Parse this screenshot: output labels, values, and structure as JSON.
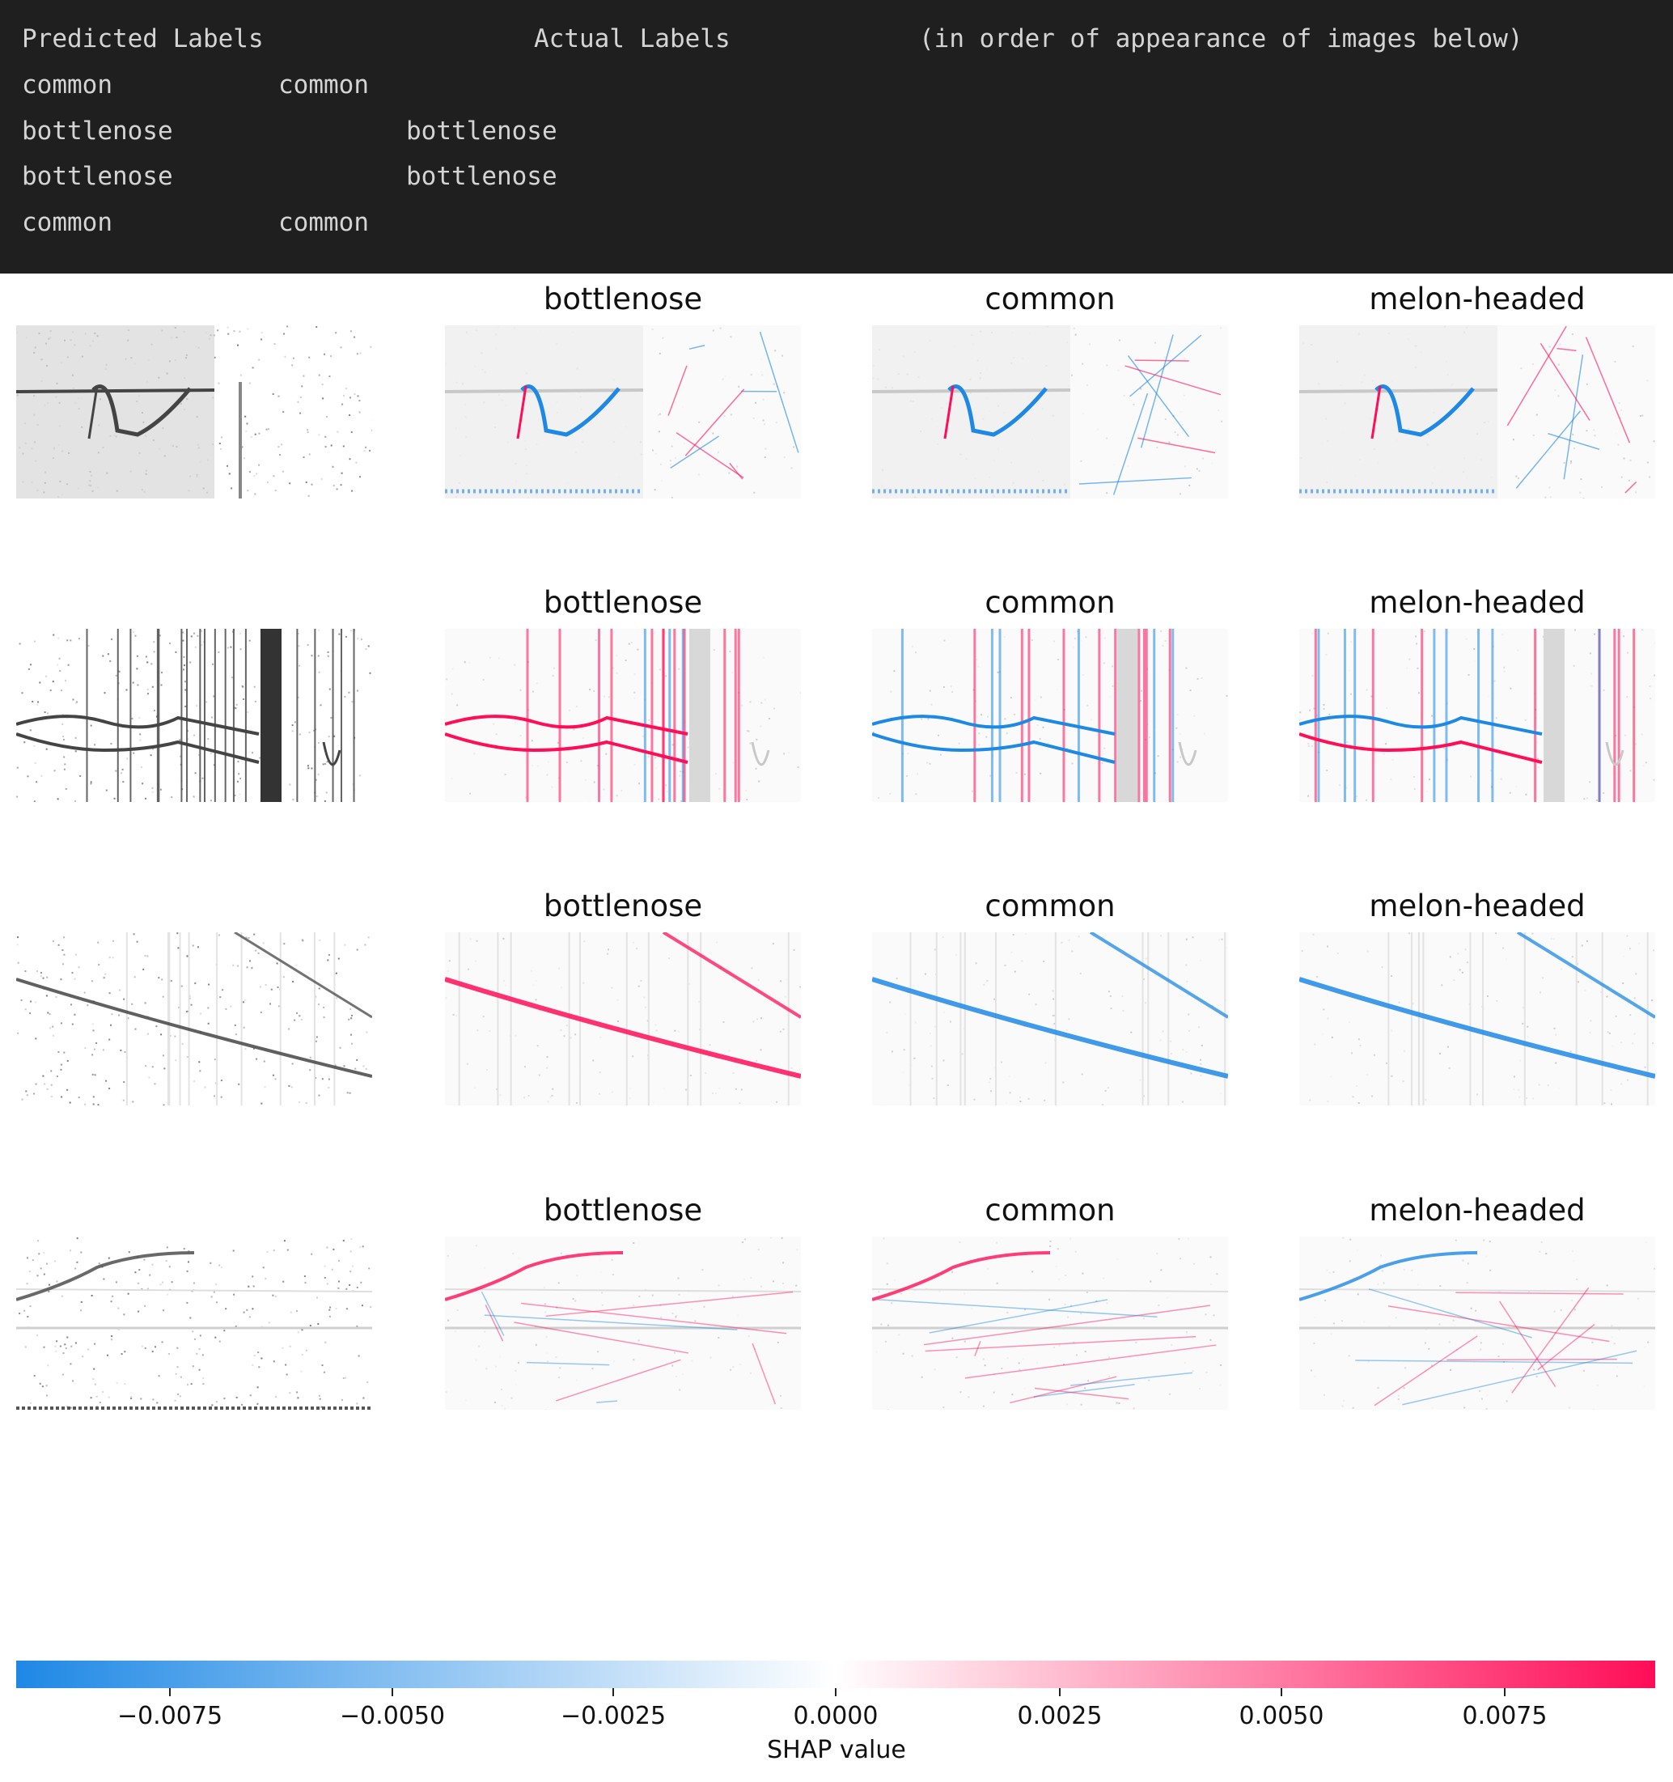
{
  "console": {
    "header": {
      "predicted": "Predicted Labels",
      "actual": "Actual Labels",
      "note": "(in order of appearance of images below)"
    },
    "rows": [
      {
        "predicted": "common",
        "actual": "common"
      },
      {
        "predicted": "bottlenose",
        "actual": "bottlenose"
      },
      {
        "predicted": "bottlenose",
        "actual": "bottlenose"
      },
      {
        "predicted": "common",
        "actual": "common"
      }
    ]
  },
  "grid": {
    "class_titles": [
      "bottlenose",
      "common",
      "melon-headed"
    ],
    "rows": 4
  },
  "colorbar": {
    "label": "SHAP value",
    "ticks": [
      "−0.0075",
      "−0.0050",
      "−0.0025",
      "0.0000",
      "0.0025",
      "0.0050",
      "0.0075"
    ],
    "colors": {
      "negative": "#1e88e5",
      "positive": "#ff0d57"
    }
  }
}
